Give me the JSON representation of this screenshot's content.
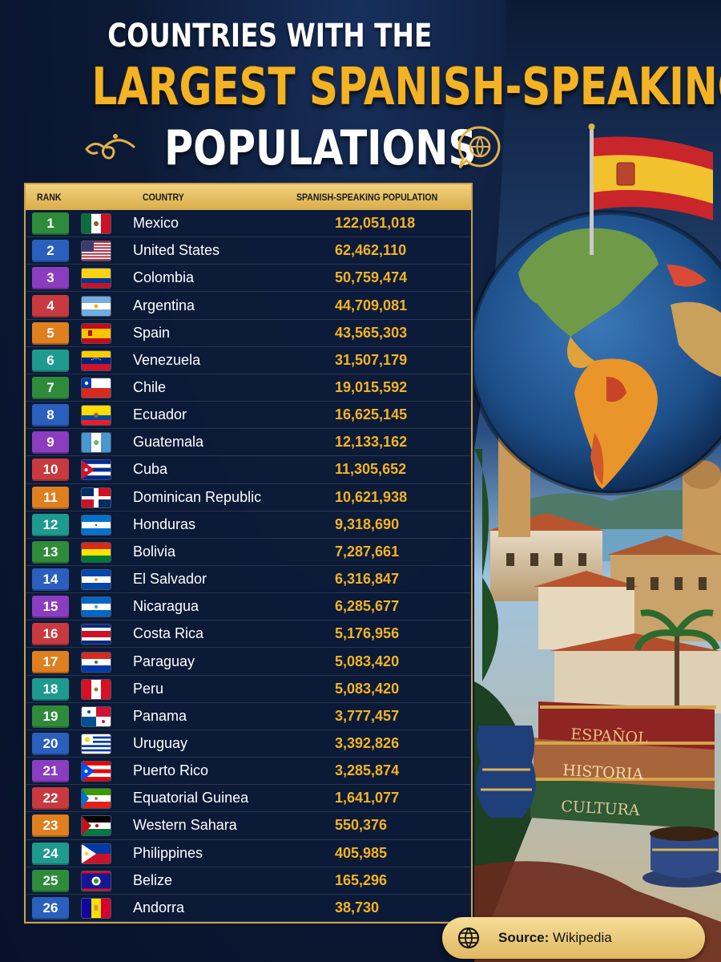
{
  "title": {
    "line1": "COUNTRIES WITH THE",
    "line2": "LARGEST SPANISH-SPEAKING",
    "line3": "POPULATIONS"
  },
  "columns": {
    "rank": "RANK",
    "country": "COUNTRY",
    "population": "SPANISH-SPEAKING POPULATION"
  },
  "badge_colors": [
    "#2e8b3a",
    "#2a5fbd",
    "#8a3dbf",
    "#c83a3f",
    "#df7f1e",
    "#1f9a8e"
  ],
  "chart_data": {
    "type": "table",
    "columns": [
      "RANK",
      "COUNTRY",
      "SPANISH-SPEAKING POPULATION"
    ],
    "rows": [
      {
        "rank": "1",
        "country": "Mexico",
        "population": "122,051,018",
        "flag": "mexico-flag-icon"
      },
      {
        "rank": "2",
        "country": "United States",
        "population": "62,462,110",
        "flag": "usa-flag-icon"
      },
      {
        "rank": "3",
        "country": "Colombia",
        "population": "50,759,474",
        "flag": "colombia-flag-icon"
      },
      {
        "rank": "4",
        "country": "Argentina",
        "population": "44,709,081",
        "flag": "argentina-flag-icon"
      },
      {
        "rank": "5",
        "country": "Spain",
        "population": "43,565,303",
        "flag": "spain-flag-icon"
      },
      {
        "rank": "6",
        "country": "Venezuela",
        "population": "31,507,179",
        "flag": "venezuela-flag-icon"
      },
      {
        "rank": "7",
        "country": "Chile",
        "population": "19,015,592",
        "flag": "chile-flag-icon"
      },
      {
        "rank": "8",
        "country": "Ecuador",
        "population": "16,625,145",
        "flag": "ecuador-flag-icon"
      },
      {
        "rank": "9",
        "country": "Guatemala",
        "population": "12,133,162",
        "flag": "guatemala-flag-icon"
      },
      {
        "rank": "10",
        "country": "Cuba",
        "population": "11,305,652",
        "flag": "cuba-flag-icon"
      },
      {
        "rank": "11",
        "country": "Dominican Republic",
        "population": "10,621,938",
        "flag": "dominican-republic-flag-icon"
      },
      {
        "rank": "12",
        "country": "Honduras",
        "population": "9,318,690",
        "flag": "honduras-flag-icon"
      },
      {
        "rank": "13",
        "country": "Bolivia",
        "population": "7,287,661",
        "flag": "bolivia-flag-icon"
      },
      {
        "rank": "14",
        "country": "El Salvador",
        "population": "6,316,847",
        "flag": "el-salvador-flag-icon"
      },
      {
        "rank": "15",
        "country": "Nicaragua",
        "population": "6,285,677",
        "flag": "nicaragua-flag-icon"
      },
      {
        "rank": "16",
        "country": "Costa Rica",
        "population": "5,176,956",
        "flag": "costa-rica-flag-icon"
      },
      {
        "rank": "17",
        "country": "Paraguay",
        "population": "5,083,420",
        "flag": "paraguay-flag-icon"
      },
      {
        "rank": "18",
        "country": "Peru",
        "population": "5,083,420",
        "flag": "peru-flag-icon"
      },
      {
        "rank": "19",
        "country": "Panama",
        "population": "3,777,457",
        "flag": "panama-flag-icon"
      },
      {
        "rank": "20",
        "country": "Uruguay",
        "population": "3,392,826",
        "flag": "uruguay-flag-icon"
      },
      {
        "rank": "21",
        "country": "Puerto Rico",
        "population": "3,285,874",
        "flag": "puerto-rico-flag-icon"
      },
      {
        "rank": "22",
        "country": "Equatorial Guinea",
        "population": "1,641,077",
        "flag": "equatorial-guinea-flag-icon"
      },
      {
        "rank": "23",
        "country": "Western Sahara",
        "population": "550,376",
        "flag": "western-sahara-flag-icon"
      },
      {
        "rank": "24",
        "country": "Philippines",
        "population": "405,985",
        "flag": "philippines-flag-icon"
      },
      {
        "rank": "25",
        "country": "Belize",
        "population": "165,296",
        "flag": "belize-flag-icon"
      },
      {
        "rank": "26",
        "country": "Andorra",
        "population": "38,730",
        "flag": "andorra-flag-icon"
      }
    ]
  },
  "books": {
    "top": "ESPAÑOL",
    "middle": "HISTORIA",
    "bottom": "CULTURA"
  },
  "source": {
    "label": "Source:",
    "value": "Wikipedia"
  }
}
